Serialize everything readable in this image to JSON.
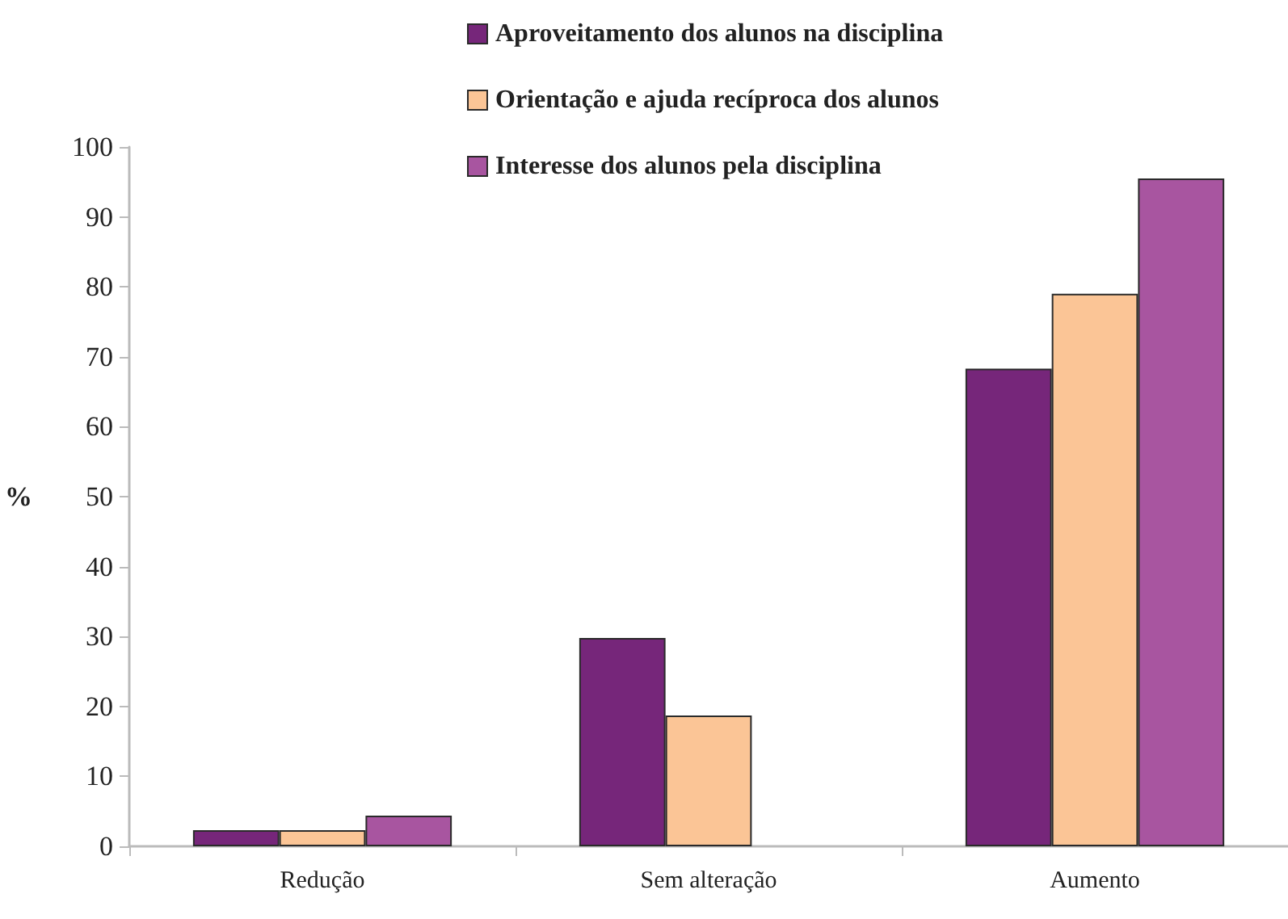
{
  "chart_data": {
    "type": "bar",
    "categories": [
      "Redução",
      "Sem alteração",
      "Aumento"
    ],
    "ylabel": "%",
    "series": [
      {
        "name": "Aproveitamento dos alunos na disciplina",
        "color": "#76267a",
        "values": [
          2.3,
          29.8,
          68.3
        ]
      },
      {
        "name": "Orientação e ajuda recíproca dos alunos",
        "color": "#fbc596",
        "values": [
          2.3,
          18.7,
          79
        ]
      },
      {
        "name": "Interesse dos alunos pela disciplina",
        "color": "#a855a0",
        "values": [
          4.4,
          null,
          95.5
        ]
      }
    ],
    "ylim": [
      0,
      100
    ],
    "yticks": [
      0,
      10,
      20,
      30,
      40,
      50,
      60,
      70,
      80,
      90,
      100
    ],
    "grid": false,
    "legend": "top"
  }
}
